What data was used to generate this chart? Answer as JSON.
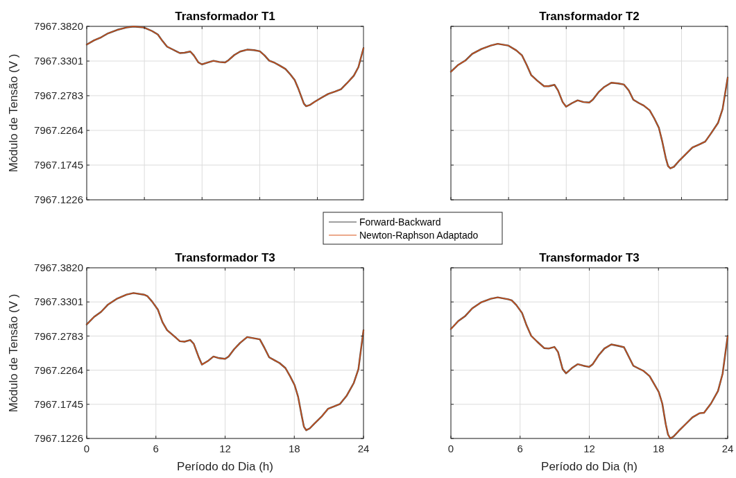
{
  "chart_data": [
    {
      "type": "line",
      "title": "Transformador T1",
      "ylabel": "Módulo de Tensão (V )",
      "xlim": [
        0,
        24
      ],
      "xticks": [
        {
          "value": 0,
          "label": null
        },
        {
          "value": 5,
          "label": null
        },
        {
          "value": 10,
          "label": null
        },
        {
          "value": 15,
          "label": null
        },
        {
          "value": 20,
          "label": null
        }
      ],
      "ylim": [
        7967.1226,
        7967.382
      ],
      "yticks": [
        7967.1226,
        7967.1745,
        7967.2264,
        7967.2783,
        7967.3301,
        {
          "value": 7967.382,
          "label": "7967.3820"
        }
      ],
      "grid": true,
      "tick_labels": "y",
      "legend": "bottom",
      "x": [
        0,
        0.64,
        1.25,
        1.85,
        2.65,
        3.46,
        4.06,
        4.96,
        5.67,
        6.17,
        6.57,
        6.97,
        7.48,
        8.08,
        8.48,
        8.98,
        9.29,
        9.69,
        9.99,
        10.49,
        10.99,
        11.5,
        12,
        12.3,
        12.8,
        13.31,
        13.91,
        14.51,
        15.01,
        15.42,
        15.82,
        16.32,
        16.72,
        17.23,
        17.63,
        18.03,
        18.33,
        18.63,
        18.83,
        19.03,
        19.34,
        19.74,
        20.34,
        20.94,
        21.55,
        22.05,
        22.55,
        23.16,
        23.56,
        24
      ],
      "series": [
        {
          "name": "Forward-Backward",
          "color": "#404040",
          "values": [
            7967.3548,
            7967.3611,
            7967.3656,
            7967.3716,
            7967.3768,
            7967.3803,
            7967.3818,
            7967.3803,
            7967.375,
            7967.3698,
            7967.3601,
            7967.3517,
            7967.3472,
            7967.342,
            7967.3426,
            7967.3444,
            7967.3385,
            7967.328,
            7967.3252,
            7967.328,
            7967.3305,
            7967.3287,
            7967.328,
            7967.3315,
            7967.3392,
            7967.3444,
            7967.3472,
            7967.3465,
            7967.3447,
            7967.3385,
            7967.3308,
            7967.3273,
            7967.3235,
            7967.3183,
            7967.3106,
            7967.3019,
            7967.2897,
            7967.2758,
            7967.2664,
            7967.2626,
            7967.2643,
            7967.2688,
            7967.2751,
            7967.281,
            7967.2845,
            7967.288,
            7967.2967,
            7967.3082,
            7967.3211,
            7967.3496
          ]
        },
        {
          "name": "Newton-Raphson Adaptado",
          "color": "#d95319",
          "values": [
            7967.3548,
            7967.3611,
            7967.3656,
            7967.3716,
            7967.3768,
            7967.3803,
            7967.3818,
            7967.3803,
            7967.375,
            7967.3698,
            7967.3601,
            7967.3517,
            7967.3472,
            7967.342,
            7967.3426,
            7967.3444,
            7967.3385,
            7967.328,
            7967.3252,
            7967.328,
            7967.3305,
            7967.3287,
            7967.328,
            7967.3315,
            7967.3392,
            7967.3444,
            7967.3472,
            7967.3465,
            7967.3447,
            7967.3385,
            7967.3308,
            7967.3273,
            7967.3235,
            7967.3183,
            7967.3106,
            7967.3019,
            7967.2897,
            7967.2758,
            7967.2664,
            7967.2626,
            7967.2643,
            7967.2688,
            7967.2751,
            7967.281,
            7967.2845,
            7967.288,
            7967.2967,
            7967.3082,
            7967.3211,
            7967.3496
          ]
        }
      ]
    },
    {
      "type": "line",
      "title": "Transformador T2",
      "xlim": [
        0,
        24
      ],
      "xticks": [
        {
          "value": 0,
          "label": null
        },
        {
          "value": 5,
          "label": null
        },
        {
          "value": 10,
          "label": null
        },
        {
          "value": 15,
          "label": null
        },
        {
          "value": 20,
          "label": null
        }
      ],
      "ylim": [
        7967.1226,
        7967.382
      ],
      "yticks": [
        7967.1226,
        7967.1745,
        7967.2264,
        7967.2783,
        7967.3301,
        7967.382
      ],
      "grid": true,
      "tick_labels": false,
      "x": [
        0,
        0.64,
        1.25,
        1.85,
        2.65,
        3.46,
        4.06,
        4.96,
        5.67,
        6.17,
        6.57,
        6.97,
        7.48,
        8.08,
        8.48,
        8.98,
        9.29,
        9.69,
        9.99,
        10.49,
        10.99,
        11.5,
        12,
        12.3,
        12.8,
        13.31,
        13.91,
        14.51,
        15.01,
        15.42,
        15.82,
        16.32,
        16.72,
        17.23,
        17.63,
        18.03,
        18.33,
        18.63,
        18.83,
        19.03,
        19.34,
        19.74,
        20.34,
        20.94,
        21.55,
        22.05,
        22.55,
        23.16,
        23.56,
        24
      ],
      "series": [
        {
          "color": "#404040",
          "values": [
            7967.3141,
            7967.3245,
            7967.3308,
            7967.3409,
            7967.3482,
            7967.3534,
            7967.3559,
            7967.3534,
            7967.3461,
            7967.3385,
            7967.3245,
            7967.3089,
            7967.3009,
            7967.2925,
            7967.2925,
            7967.2946,
            7967.2862,
            7967.2688,
            7967.2619,
            7967.2671,
            7967.2713,
            7967.2688,
            7967.2681,
            7967.2723,
            7967.2835,
            7967.2915,
            7967.2977,
            7967.2967,
            7967.2949,
            7967.2862,
            7967.2723,
            7967.2671,
            7967.2636,
            7967.2566,
            7967.2445,
            7967.2305,
            7967.2096,
            7967.1853,
            7967.1731,
            7967.1696,
            7967.172,
            7967.18,
            7967.1905,
            7967.2009,
            7967.2055,
            7967.2096,
            7967.2218,
            7967.2375,
            7967.2584,
            7967.3054
          ]
        },
        {
          "color": "#d95319",
          "values": [
            7967.3141,
            7967.3245,
            7967.3308,
            7967.3409,
            7967.3482,
            7967.3534,
            7967.3559,
            7967.3534,
            7967.3461,
            7967.3385,
            7967.3245,
            7967.3089,
            7967.3009,
            7967.2925,
            7967.2925,
            7967.2946,
            7967.2862,
            7967.2688,
            7967.2619,
            7967.2671,
            7967.2713,
            7967.2688,
            7967.2681,
            7967.2723,
            7967.2835,
            7967.2915,
            7967.2977,
            7967.2967,
            7967.2949,
            7967.2862,
            7967.2723,
            7967.2671,
            7967.2636,
            7967.2566,
            7967.2445,
            7967.2305,
            7967.2096,
            7967.1853,
            7967.1731,
            7967.1696,
            7967.172,
            7967.18,
            7967.1905,
            7967.2009,
            7967.2055,
            7967.2096,
            7967.2218,
            7967.2375,
            7967.2584,
            7967.3054
          ]
        }
      ]
    },
    {
      "type": "line",
      "title": "Transformador T3",
      "ylabel": "Módulo de Tensão (V )",
      "xlabel": "Período do Dia (h)",
      "xlim": [
        0,
        24
      ],
      "xticks": [
        0,
        6,
        12,
        18,
        24
      ],
      "ylim": [
        7967.1226,
        7967.382
      ],
      "yticks": [
        7967.1226,
        7967.1745,
        7967.2264,
        7967.2783,
        7967.3301,
        {
          "value": 7967.382,
          "label": "7967.3820"
        }
      ],
      "grid": true,
      "x": [
        0,
        0.64,
        1.25,
        1.85,
        2.65,
        3.46,
        4.06,
        4.96,
        5.27,
        5.67,
        6.17,
        6.57,
        6.97,
        7.48,
        8.08,
        8.48,
        8.98,
        9.29,
        9.69,
        9.99,
        10.49,
        10.99,
        11.5,
        12,
        12.3,
        12.8,
        13.31,
        13.91,
        14.51,
        15.01,
        15.42,
        15.82,
        16.32,
        16.72,
        17.23,
        17.63,
        18.03,
        18.33,
        18.63,
        18.83,
        19.03,
        19.34,
        19.74,
        20.34,
        20.94,
        21.55,
        21.95,
        22.55,
        23.16,
        23.56,
        24
      ],
      "series": [
        {
          "color": "#404040",
          "values": [
            7967.2959,
            7967.3074,
            7967.315,
            7967.3262,
            7967.3353,
            7967.3412,
            7967.3436,
            7967.3412,
            7967.3388,
            7967.3307,
            7967.3185,
            7967.2994,
            7967.2872,
            7967.2795,
            7967.2704,
            7967.2697,
            7967.2722,
            7967.2662,
            7967.2471,
            7967.2348,
            7967.2401,
            7967.2471,
            7967.2446,
            7967.2436,
            7967.2471,
            7967.2586,
            7967.268,
            7967.2767,
            7967.2749,
            7967.2732,
            7967.26,
            7967.246,
            7967.2411,
            7967.2373,
            7967.2296,
            7967.2174,
            7967.2035,
            7967.186,
            7967.1581,
            7967.1407,
            7967.1351,
            7967.1379,
            7967.1452,
            7967.1553,
            7967.1679,
            7967.1721,
            7967.1749,
            7967.1878,
            7967.207,
            7967.2279,
            7967.2872
          ]
        },
        {
          "color": "#d95319",
          "values": [
            7967.2959,
            7967.3074,
            7967.315,
            7967.3262,
            7967.3353,
            7967.3412,
            7967.3436,
            7967.3412,
            7967.3388,
            7967.3307,
            7967.3185,
            7967.2994,
            7967.2872,
            7967.2795,
            7967.2704,
            7967.2697,
            7967.2722,
            7967.2662,
            7967.2471,
            7967.2348,
            7967.2401,
            7967.2471,
            7967.2446,
            7967.2436,
            7967.2471,
            7967.2586,
            7967.268,
            7967.2767,
            7967.2749,
            7967.2732,
            7967.26,
            7967.246,
            7967.2411,
            7967.2373,
            7967.2296,
            7967.2174,
            7967.2035,
            7967.186,
            7967.1581,
            7967.1407,
            7967.1351,
            7967.1379,
            7967.1452,
            7967.1553,
            7967.1679,
            7967.1721,
            7967.1749,
            7967.1878,
            7967.207,
            7967.2279,
            7967.2872
          ]
        }
      ]
    },
    {
      "type": "line",
      "title": "Transformador T3",
      "xlabel": "Período do Dia (h)",
      "xlim": [
        0,
        24
      ],
      "xticks": [
        0,
        6,
        12,
        18,
        24
      ],
      "ylim": [
        7967.1226,
        7967.382
      ],
      "yticks": [
        7967.1226,
        7967.1745,
        7967.2264,
        7967.2783,
        7967.3301,
        7967.382
      ],
      "grid": true,
      "tick_labels": "x",
      "x": [
        0,
        0.64,
        1.25,
        1.85,
        2.65,
        3.46,
        4.06,
        4.96,
        5.27,
        5.67,
        6.17,
        6.57,
        6.97,
        7.48,
        8.08,
        8.48,
        8.98,
        9.29,
        9.69,
        9.99,
        10.49,
        10.99,
        11.5,
        12,
        12.3,
        12.8,
        13.31,
        13.91,
        14.51,
        15.01,
        15.42,
        15.82,
        16.32,
        16.72,
        17.23,
        17.63,
        18.03,
        18.33,
        18.63,
        18.83,
        19.03,
        19.34,
        19.74,
        20.34,
        20.94,
        21.55,
        21.95,
        22.55,
        23.16,
        23.56,
        24
      ],
      "series": [
        {
          "color": "#404040",
          "values": [
            7967.2889,
            7967.3011,
            7967.3088,
            7967.3203,
            7967.3297,
            7967.3349,
            7967.337,
            7967.3342,
            7967.3325,
            7967.3255,
            7967.3133,
            7967.2941,
            7967.2784,
            7967.2697,
            7967.26,
            7967.2593,
            7967.2617,
            7967.254,
            7967.2279,
            7967.2216,
            7967.2296,
            7967.2355,
            7967.2331,
            7967.2314,
            7967.2355,
            7967.2488,
            7967.2593,
            7967.2655,
            7967.2634,
            7967.2613,
            7967.2471,
            7967.2331,
            7967.2286,
            7967.2251,
            7967.2174,
            7967.2052,
            7967.193,
            7967.1756,
            7967.1442,
            7967.1285,
            7967.1226,
            7967.1261,
            7967.1337,
            7967.1442,
            7967.1546,
            7967.1609,
            7967.1616,
            7967.1756,
            7967.1947,
            7967.2209,
            7967.2784
          ]
        },
        {
          "color": "#d95319",
          "values": [
            7967.2889,
            7967.3011,
            7967.3088,
            7967.3203,
            7967.3297,
            7967.3349,
            7967.337,
            7967.3342,
            7967.3325,
            7967.3255,
            7967.3133,
            7967.2941,
            7967.2784,
            7967.2697,
            7967.26,
            7967.2593,
            7967.2617,
            7967.254,
            7967.2279,
            7967.2216,
            7967.2296,
            7967.2355,
            7967.2331,
            7967.2314,
            7967.2355,
            7967.2488,
            7967.2593,
            7967.2655,
            7967.2634,
            7967.2613,
            7967.2471,
            7967.2331,
            7967.2286,
            7967.2251,
            7967.2174,
            7967.2052,
            7967.193,
            7967.1756,
            7967.1442,
            7967.1285,
            7967.1226,
            7967.1261,
            7967.1337,
            7967.1442,
            7967.1546,
            7967.1609,
            7967.1616,
            7967.1756,
            7967.1947,
            7967.2209,
            7967.2784
          ]
        }
      ]
    }
  ]
}
